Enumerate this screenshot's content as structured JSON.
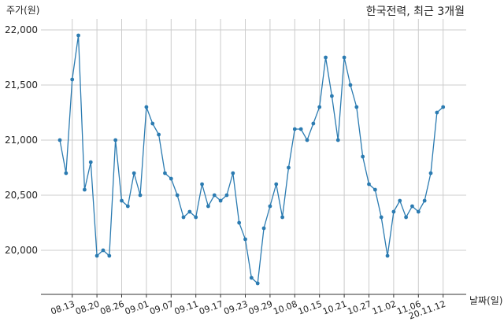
{
  "chart_data": {
    "type": "line",
    "title": "한국전력, 최근 3개월",
    "ylabel": "주가(원)",
    "xlabel": "날짜(일)",
    "ylim": [
      19600,
      22100
    ],
    "yticks": [
      20000,
      20500,
      21000,
      21500,
      22000
    ],
    "ytick_labels": [
      "20,000",
      "20,500",
      "21,000",
      "21,500",
      "22,000"
    ],
    "xtick_labels": [
      "08.13",
      "08.20",
      "08.26",
      "09.01",
      "09.07",
      "09.11",
      "09.17",
      "09.23",
      "09.29",
      "10.08",
      "10.15",
      "10.21",
      "10.27",
      "11.02",
      "11.06",
      "20.11.12"
    ],
    "xtick_index": [
      2,
      6,
      10,
      14,
      18,
      22,
      26,
      30,
      34,
      38,
      42,
      46,
      50,
      54,
      58,
      62
    ],
    "grid": true,
    "line_color": "#2b7bb1",
    "series": [
      {
        "values": [
          21000,
          20700,
          21550,
          21950,
          20550,
          20800,
          19950,
          20000,
          19950,
          21000,
          20450,
          20400,
          20700,
          20500,
          21300,
          21150,
          21050,
          20700,
          20650,
          20500,
          20300,
          20350,
          20300,
          20600,
          20400,
          20500,
          20450,
          20500,
          20700,
          20250,
          20100,
          19750,
          19700,
          20200,
          20400,
          20600,
          20300,
          20750,
          21100,
          21100,
          21000,
          21150,
          21300,
          21750,
          21400,
          21000,
          21750,
          21500,
          21300,
          20850,
          20600,
          20550,
          20300,
          19950,
          20350,
          20450,
          20300,
          20400,
          20350,
          20450,
          20700,
          21250,
          21300
        ]
      }
    ]
  }
}
